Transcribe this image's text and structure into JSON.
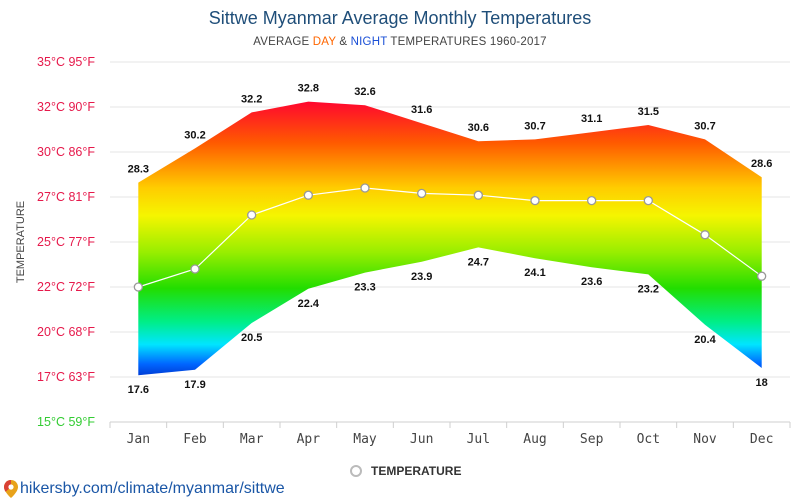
{
  "header": {
    "title": "Sittwe Myanmar Average Monthly Temperatures",
    "subtitle_prefix": "AVERAGE ",
    "subtitle_day": "DAY",
    "subtitle_amp": " & ",
    "subtitle_night": "NIGHT",
    "subtitle_suffix": " TEMPERATURES 1960-2017"
  },
  "legend": {
    "label": "TEMPERATURE"
  },
  "source": {
    "text": "hikersby.com/climate/myanmar/sittwe"
  },
  "colors": {
    "title": "#1f4e79",
    "day_word": "#ff6600",
    "night_word": "#1a4fd6",
    "tick_warm": "#e6194b",
    "tick_cool": "#33cc33"
  },
  "chart_data": {
    "type": "area",
    "categories": [
      "Jan",
      "Feb",
      "Mar",
      "Apr",
      "May",
      "Jun",
      "Jul",
      "Aug",
      "Sep",
      "Oct",
      "Nov",
      "Dec"
    ],
    "ylabel": "TEMPERATURE",
    "ylim": [
      15,
      35
    ],
    "yticks": [
      {
        "value": 35,
        "label": "35°C 95°F"
      },
      {
        "value": 32.5,
        "label": "32°C 90°F"
      },
      {
        "value": 30,
        "label": "30°C 86°F"
      },
      {
        "value": 27.5,
        "label": "27°C 81°F"
      },
      {
        "value": 25,
        "label": "25°C 77°F"
      },
      {
        "value": 22.5,
        "label": "22°C 72°F"
      },
      {
        "value": 20,
        "label": "20°C 68°F"
      },
      {
        "value": 17.5,
        "label": "17°C 63°F"
      },
      {
        "value": 15,
        "label": "15°C 59°F"
      }
    ],
    "series": [
      {
        "key": "day",
        "values": [
          28.3,
          30.2,
          32.2,
          32.8,
          32.6,
          31.6,
          30.6,
          30.7,
          31.1,
          31.5,
          30.7,
          28.6
        ]
      },
      {
        "key": "night",
        "values": [
          17.6,
          17.9,
          20.5,
          22.4,
          23.3,
          23.9,
          24.7,
          24.1,
          23.6,
          23.2,
          20.4,
          18
        ]
      },
      {
        "key": "average",
        "name": "TEMPERATURE",
        "values": [
          22.5,
          23.5,
          26.5,
          27.6,
          28.0,
          27.7,
          27.6,
          27.3,
          27.3,
          27.3,
          25.4,
          23.1
        ]
      }
    ],
    "grid": true,
    "legend_position": "bottom-center"
  }
}
